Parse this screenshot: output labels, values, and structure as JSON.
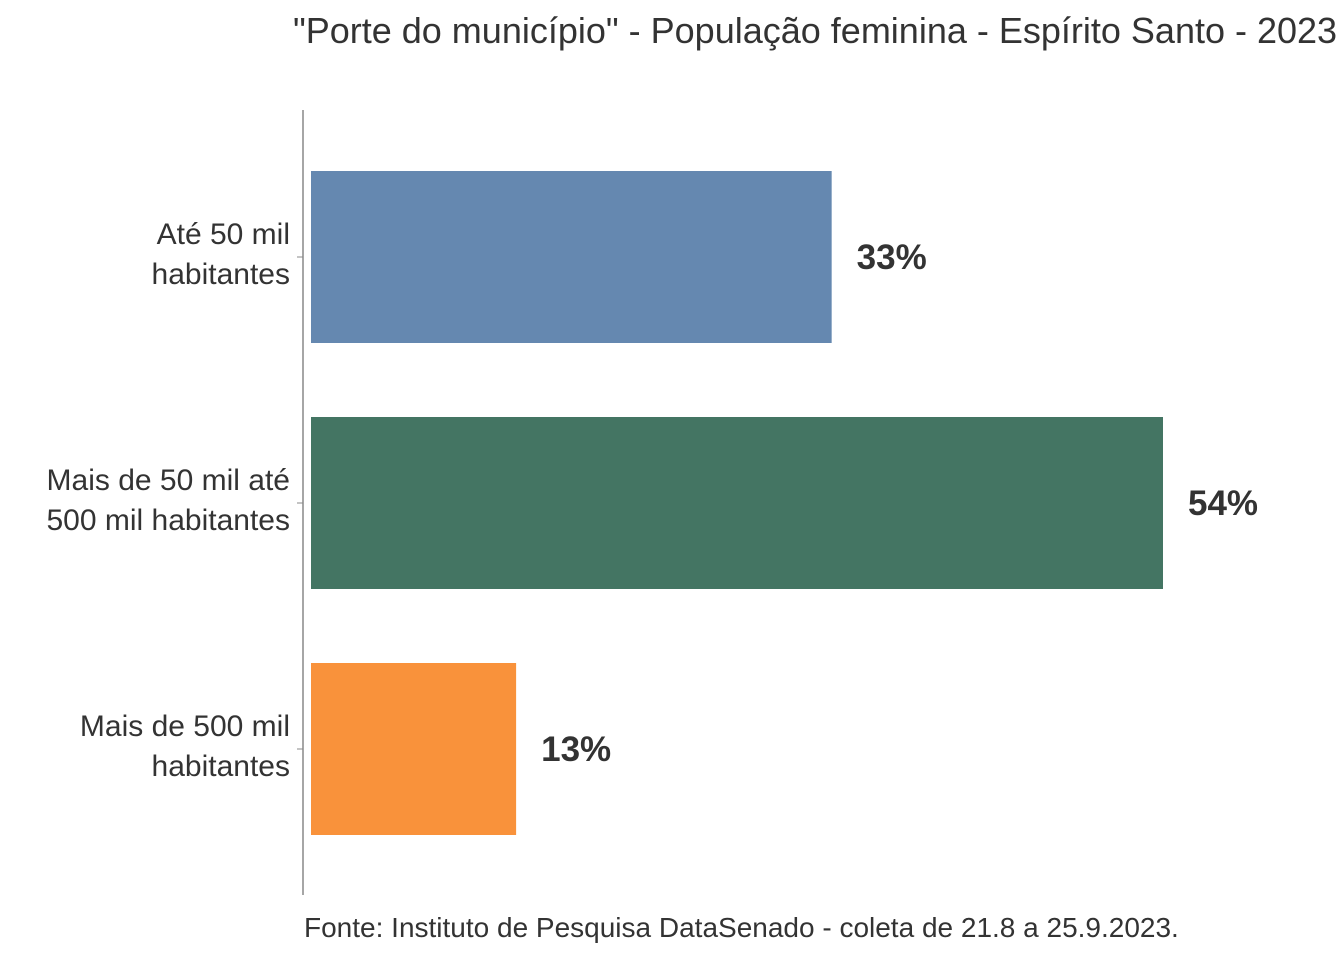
{
  "chart_data": {
    "type": "bar",
    "orientation": "horizontal",
    "title": "\"Porte do município\" - População feminina - Espírito Santo - 2023",
    "categories": [
      "Até 50 mil habitantes",
      "Mais de 50 mil até 500 mil habitantes",
      "Mais de 500 mil habitantes"
    ],
    "category_lines": [
      [
        "Até 50 mil",
        "habitantes"
      ],
      [
        "Mais de 50 mil até",
        "500 mil habitantes"
      ],
      [
        "Mais de 500 mil",
        "habitantes"
      ]
    ],
    "values": [
      33,
      54,
      13
    ],
    "value_labels": [
      "33%",
      "54%",
      "13%"
    ],
    "colors": [
      "#6588b0",
      "#447563",
      "#f9923b"
    ],
    "xlabel": "",
    "ylabel": "",
    "xlim": [
      0,
      54
    ],
    "grid": false,
    "legend": "none",
    "source": "Fonte: Instituto de Pesquisa DataSenado - coleta de 21.8 a 25.9.2023."
  }
}
